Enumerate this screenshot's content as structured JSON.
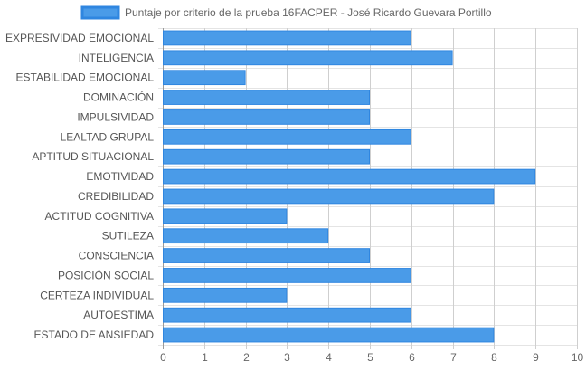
{
  "chart_data": {
    "type": "bar",
    "orientation": "horizontal",
    "categories": [
      "EXPRESIVIDAD EMOCIONAL",
      "INTELIGENCIA",
      "ESTABILIDAD EMOCIONAL",
      "DOMINACIÓN",
      "IMPULSIVIDAD",
      "LEALTAD GRUPAL",
      "APTITUD SITUACIONAL",
      "EMOTIVIDAD",
      "CREDIBILIDAD",
      "ACTITUD COGNITIVA",
      "SUTILEZA",
      "CONSCIENCIA",
      "POSICIÓN SOCIAL",
      "CERTEZA INDIVIDUAL",
      "AUTOESTIMA",
      "ESTADO DE ANSIEDAD"
    ],
    "series": [
      {
        "name": "Puntaje por criterio de la prueba 16FACPER - José Ricardo Guevara Portillo",
        "values": [
          6,
          7,
          2,
          5,
          5,
          6,
          5,
          9,
          8,
          3,
          4,
          5,
          6,
          3,
          6,
          8
        ],
        "color": "#4a9be8",
        "border_color": "#2f86e0"
      }
    ],
    "xlim": [
      0,
      10
    ],
    "x_ticks": [
      "0",
      "1",
      "2",
      "3",
      "4",
      "5",
      "6",
      "7",
      "8",
      "9",
      "10"
    ],
    "grid": true,
    "legend_position": "top"
  }
}
